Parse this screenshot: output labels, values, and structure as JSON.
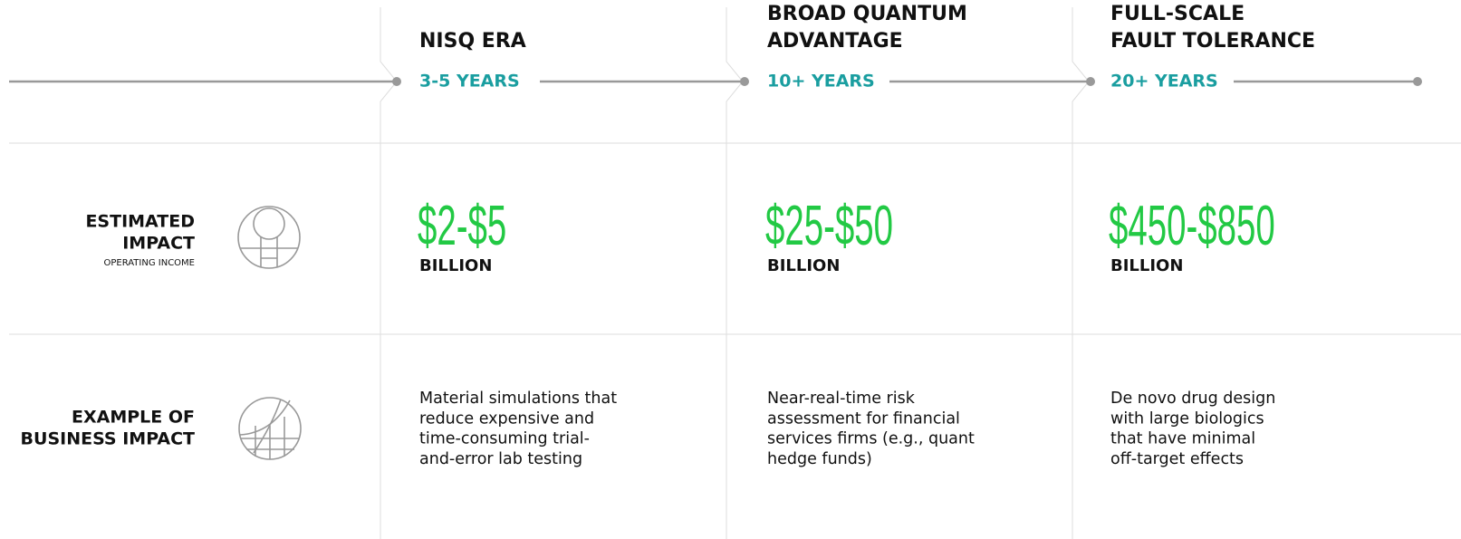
{
  "rows": [
    {
      "label": [
        "ESTIMATED",
        "IMPACT"
      ],
      "sublabel": "OPERATING INCOME"
    },
    {
      "label": [
        "EXAMPLE OF",
        "BUSINESS IMPACT"
      ]
    }
  ],
  "eras": [
    {
      "title": [
        "NISQ ERA"
      ],
      "years": "3-5 YEARS",
      "amount": "$2-$5",
      "unit": "BILLION",
      "description": [
        "Material simulations that",
        "reduce expensive and",
        "time-consuming trial-",
        "and-error lab testing"
      ]
    },
    {
      "title": [
        "BROAD QUANTUM",
        "ADVANTAGE"
      ],
      "years": "10+ YEARS",
      "amount": "$25-$50",
      "unit": "BILLION",
      "description": [
        "Near-real-time risk",
        "assessment for financial",
        "services firms (e.g., quant",
        "hedge funds)"
      ]
    },
    {
      "title": [
        "FULL-SCALE",
        "FAULT TOLERANCE"
      ],
      "years": "20+ YEARS",
      "amount": "$450-$850",
      "unit": "BILLION",
      "description": [
        "De novo drug design",
        "with large biologics",
        "that have minimal",
        "off-target effects"
      ]
    }
  ]
}
